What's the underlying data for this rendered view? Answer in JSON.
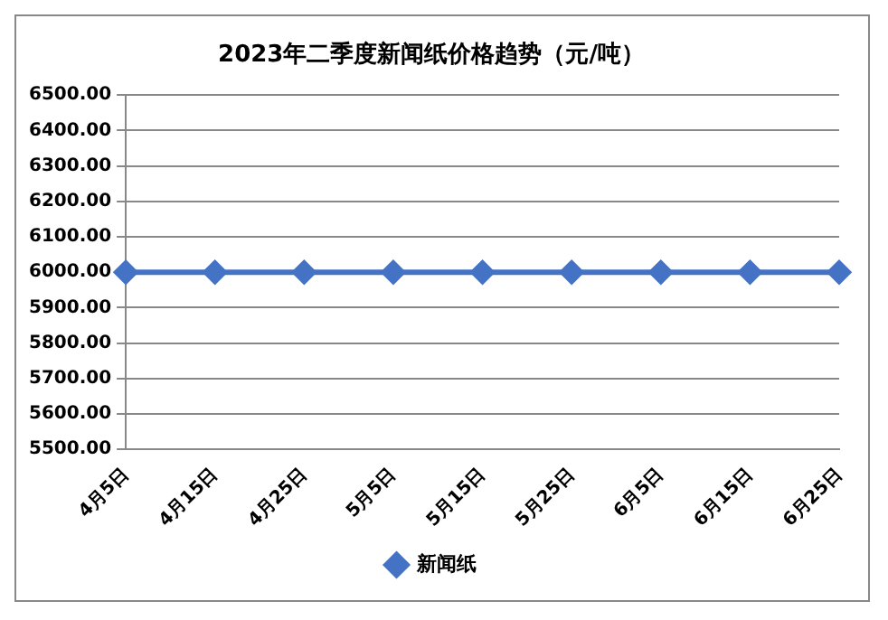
{
  "chart_data": {
    "type": "line",
    "title": "2023年二季度新闻纸价格趋势（元/吨）",
    "categories": [
      "4月5日",
      "4月15日",
      "4月25日",
      "5月5日",
      "5月15日",
      "5月25日",
      "6月5日",
      "6月15日",
      "6月25日"
    ],
    "series": [
      {
        "name": "新闻纸",
        "color": "#4472c4",
        "values": [
          6000,
          6000,
          6000,
          6000,
          6000,
          6000,
          6000,
          6000,
          6000
        ]
      }
    ],
    "ylim": [
      5500,
      6500
    ],
    "yticks": [
      {
        "value": 5500,
        "label": "5500.00"
      },
      {
        "value": 5600,
        "label": "5600.00"
      },
      {
        "value": 5700,
        "label": "5700.00"
      },
      {
        "value": 5800,
        "label": "5800.00"
      },
      {
        "value": 5900,
        "label": "5900.00"
      },
      {
        "value": 6000,
        "label": "6000.00"
      },
      {
        "value": 6100,
        "label": "6100.00"
      },
      {
        "value": 6200,
        "label": "6200.00"
      },
      {
        "value": 6300,
        "label": "6300.00"
      },
      {
        "value": 6400,
        "label": "6400.00"
      },
      {
        "value": 6500,
        "label": "6500.00"
      }
    ],
    "grid": "y",
    "legend": "bottom",
    "marker": "diamond",
    "line_style": "solid"
  }
}
